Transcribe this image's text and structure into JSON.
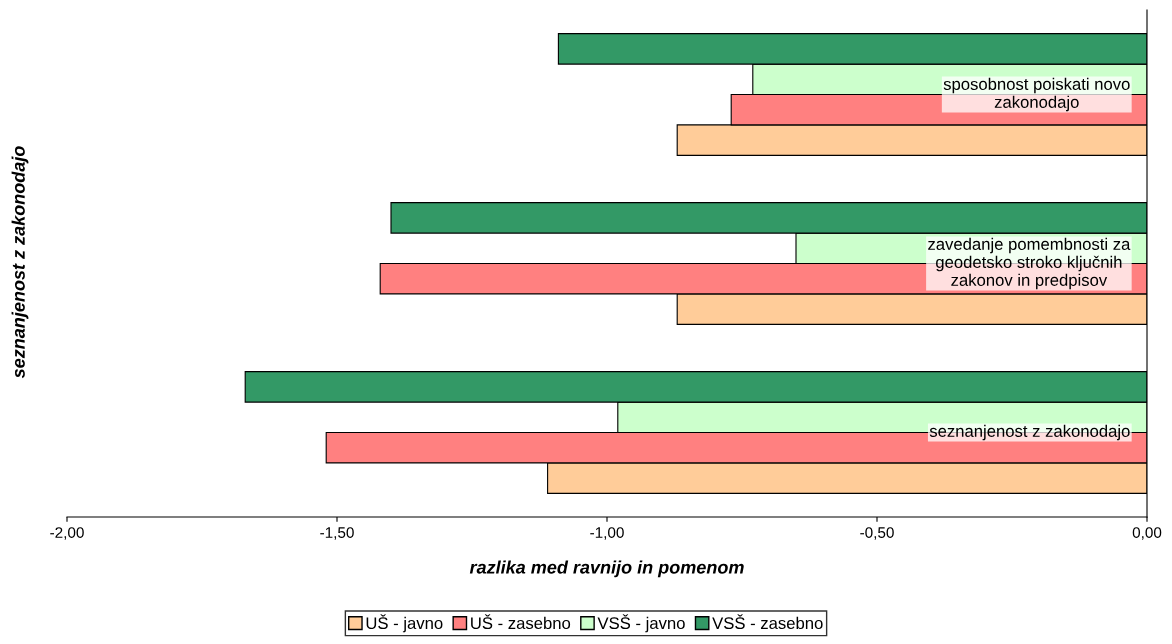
{
  "chart_data": {
    "type": "bar",
    "orientation": "horizontal",
    "ylabel": "seznanjenost z zakonodajo",
    "xlabel": "razlika med ravnijo in pomenom",
    "categories": [
      "sposobnost poiskati novo\nzakonodajo",
      "zavedanje pomembnosti za\ngeodetsko stroko ključnih\nzakonov in predpisov",
      "seznanjenost z zakonodajo"
    ],
    "series": [
      {
        "name": "UŠ - javno",
        "color": "#ffcc99",
        "values": [
          -0.87,
          -0.87,
          -1.11
        ]
      },
      {
        "name": "UŠ - zasebno",
        "color": "#ff8080",
        "values": [
          -0.77,
          -1.42,
          -1.52
        ]
      },
      {
        "name": "VSŠ - javno",
        "color": "#ccffcc",
        "values": [
          -0.73,
          -0.65,
          -0.98
        ]
      },
      {
        "name": "VSŠ - zasebno",
        "color": "#339966",
        "values": [
          -1.09,
          -1.4,
          -1.67
        ]
      }
    ],
    "xlim": [
      -2,
      0
    ],
    "xticks": [
      {
        "value": -2,
        "label": "-2,00"
      },
      {
        "value": -1.5,
        "label": "-1,50"
      },
      {
        "value": -1,
        "label": "-1,00"
      },
      {
        "value": -0.5,
        "label": "-0,50"
      },
      {
        "value": 0,
        "label": "0,00"
      }
    ],
    "grid": false,
    "legend": "bottom"
  }
}
